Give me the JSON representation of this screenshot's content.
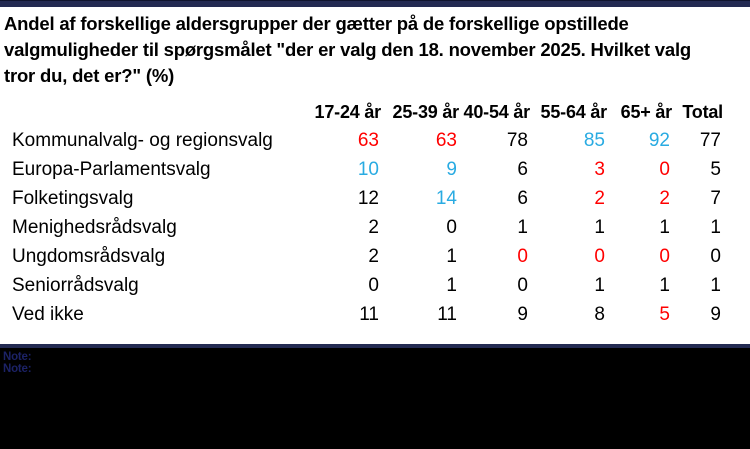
{
  "header": {
    "title_lines": [
      "Andel af forskellige aldersgrupper der gætter på de forskellige opstillede",
      "valgmuligheder til spørgsmålet \"der er valg den 18. november 2025. Hvilket valg",
      "tror du, det er?\" (%)"
    ]
  },
  "chart_data": {
    "type": "table",
    "title": "Andel af forskellige aldersgrupper der gætter på de forskellige opstillede valgmuligheder til spørgsmålet \"der er valg den 18. november 2025. Hvilket valg tror du, det er?\" (%)",
    "unit": "%",
    "columns": [
      "17-24 år",
      "25-39 år",
      "40-54 år",
      "55-64 år",
      "65+ år",
      "Total"
    ],
    "rows": [
      {
        "label": "Kommunalvalg- og regionsvalg",
        "values": [
          63,
          63,
          78,
          85,
          92,
          77
        ],
        "value_colors": [
          "red",
          "red",
          "black",
          "blue",
          "blue",
          "black"
        ]
      },
      {
        "label": "Europa-Parlamentsvalg",
        "values": [
          10,
          9,
          6,
          3,
          0,
          5
        ],
        "value_colors": [
          "blue",
          "blue",
          "black",
          "red",
          "red",
          "black"
        ]
      },
      {
        "label": "Folketingsvalg",
        "values": [
          12,
          14,
          6,
          2,
          2,
          7
        ],
        "value_colors": [
          "black",
          "blue",
          "black",
          "red",
          "red",
          "black"
        ]
      },
      {
        "label": "Menighedsrådsvalg",
        "values": [
          2,
          0,
          1,
          1,
          1,
          1
        ],
        "value_colors": [
          "black",
          "black",
          "black",
          "black",
          "black",
          "black"
        ]
      },
      {
        "label": "Ungdomsrådsvalg",
        "values": [
          2,
          1,
          0,
          0,
          0,
          0
        ],
        "value_colors": [
          "black",
          "black",
          "red",
          "red",
          "red",
          "black"
        ]
      },
      {
        "label": "Seniorrådsvalg",
        "values": [
          0,
          1,
          0,
          1,
          1,
          1
        ],
        "value_colors": [
          "black",
          "black",
          "black",
          "black",
          "black",
          "black"
        ]
      },
      {
        "label": "Ved ikke",
        "values": [
          11,
          11,
          9,
          8,
          5,
          9
        ],
        "value_colors": [
          "black",
          "black",
          "black",
          "black",
          "red",
          "black"
        ]
      }
    ],
    "highlight_colors": {
      "red": "#ff0000",
      "blue": "#29abe2",
      "black": "#000000"
    },
    "layout": {
      "legend": false,
      "grid": false
    }
  },
  "footer": {
    "note_lines": [
      "Note:",
      "Note:"
    ]
  }
}
